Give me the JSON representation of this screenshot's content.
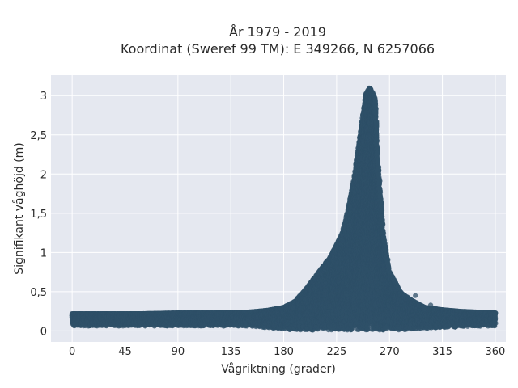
{
  "chart_data": {
    "type": "scatter",
    "title": "År 1979 - 2019",
    "subtitle": "Koordinat (Sweref 99 TM): E 349266, N 6257066",
    "xlabel": "Vågriktning (grader)",
    "ylabel": "Signifikant våghöjd (m)",
    "xlim": [
      -18,
      369
    ],
    "ylim": [
      -0.14,
      3.26
    ],
    "xticks": [
      0,
      45,
      90,
      135,
      180,
      225,
      270,
      315,
      360
    ],
    "xtick_labels": [
      "0",
      "45",
      "90",
      "135",
      "180",
      "225",
      "270",
      "315",
      "360"
    ],
    "yticks": [
      0,
      0.5,
      1,
      1.5,
      2,
      2.5,
      3
    ],
    "ytick_labels": [
      "0",
      "0,5",
      "1",
      "1,5",
      "2",
      "2,5",
      "3"
    ],
    "grid": true,
    "background_color": "#e5e8f0",
    "marker_color": "#2f5068",
    "envelope": {
      "direction": [
        0,
        30,
        60,
        90,
        120,
        150,
        165,
        180,
        190,
        200,
        210,
        220,
        230,
        235,
        240,
        245,
        250,
        253,
        255,
        258,
        260,
        265,
        270,
        280,
        290,
        300,
        315,
        330,
        345,
        360
      ],
      "max_height": [
        0.22,
        0.22,
        0.22,
        0.23,
        0.23,
        0.24,
        0.26,
        0.3,
        0.38,
        0.55,
        0.75,
        0.95,
        1.25,
        1.55,
        1.95,
        2.5,
        3.02,
        3.1,
        3.05,
        2.95,
        2.2,
        1.2,
        0.75,
        0.48,
        0.38,
        0.3,
        0.27,
        0.25,
        0.24,
        0.23
      ],
      "min_height": [
        0.06,
        0.06,
        0.06,
        0.06,
        0.06,
        0.06,
        0.04,
        0.02,
        0.01,
        0.01,
        0.01,
        0.01,
        0.01,
        0.01,
        0.01,
        0.01,
        0.01,
        0.01,
        0.01,
        0.01,
        0.01,
        0.01,
        0.01,
        0.01,
        0.02,
        0.03,
        0.04,
        0.05,
        0.06,
        0.06
      ]
    }
  }
}
